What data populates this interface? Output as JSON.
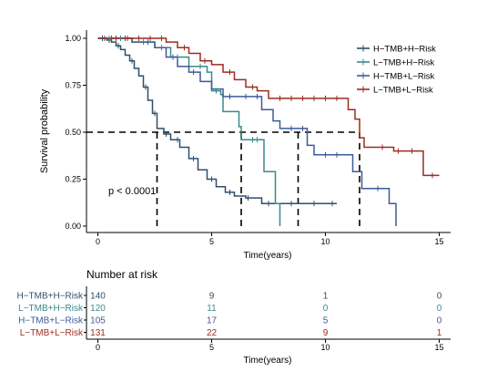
{
  "chart_data": {
    "type": "line",
    "ylabel": "Survival probability",
    "xlabel": "Time(years)",
    "xlim": [
      -0.5,
      15.5
    ],
    "ylim": [
      0,
      1
    ],
    "xticks": [
      0,
      5,
      10,
      15
    ],
    "yticks": [
      0.0,
      0.25,
      0.5,
      0.75,
      1.0
    ],
    "ytick_labels": [
      "0.00",
      "0.25",
      "0.50",
      "0.75",
      "1.00"
    ],
    "pvalue": "p < 0.0001",
    "legend_position": "top-right",
    "median_line_y": 0.5,
    "medians": [
      2.6,
      6.3,
      8.8,
      11.5
    ],
    "series": [
      {
        "name": "H−TMB+H−Risk",
        "color": "#2f4f6b",
        "steps": [
          [
            0,
            1
          ],
          [
            0.4,
            0.99
          ],
          [
            0.6,
            0.98
          ],
          [
            0.8,
            0.96
          ],
          [
            1.0,
            0.94
          ],
          [
            1.2,
            0.91
          ],
          [
            1.4,
            0.88
          ],
          [
            1.6,
            0.84
          ],
          [
            1.8,
            0.8
          ],
          [
            2.0,
            0.74
          ],
          [
            2.2,
            0.67
          ],
          [
            2.4,
            0.6
          ],
          [
            2.6,
            0.52
          ],
          [
            2.9,
            0.49
          ],
          [
            3.2,
            0.46
          ],
          [
            3.6,
            0.42
          ],
          [
            4.0,
            0.36
          ],
          [
            4.4,
            0.3
          ],
          [
            4.8,
            0.25
          ],
          [
            5.2,
            0.21
          ],
          [
            5.6,
            0.18
          ],
          [
            6.0,
            0.16
          ],
          [
            6.5,
            0.15
          ],
          [
            7.2,
            0.12
          ],
          [
            10.5,
            0.12
          ]
        ],
        "censor_x": [
          0.2,
          0.5,
          0.9,
          1.5,
          2.1,
          2.5,
          3.0,
          3.5,
          4.2,
          5.0,
          5.8,
          6.6,
          7.5,
          8.5,
          9.5,
          10.3
        ]
      },
      {
        "name": "L−TMB+H−Risk",
        "color": "#3a8a8a",
        "steps": [
          [
            0,
            1
          ],
          [
            1.5,
            0.98
          ],
          [
            2.5,
            0.95
          ],
          [
            3.2,
            0.9
          ],
          [
            4.0,
            0.85
          ],
          [
            4.8,
            0.82
          ],
          [
            5.0,
            0.72
          ],
          [
            5.4,
            0.7
          ],
          [
            5.5,
            0.61
          ],
          [
            6.2,
            0.53
          ],
          [
            6.3,
            0.46
          ],
          [
            7.3,
            0.29
          ],
          [
            7.8,
            0.12
          ],
          [
            8.0,
            0.0
          ]
        ],
        "censor_x": [
          0.5,
          1.0,
          2.0,
          2.8,
          3.5,
          4.5,
          5.2,
          6.8,
          7.0
        ]
      },
      {
        "name": "H−TMB+L−Risk",
        "color": "#3d5a99",
        "steps": [
          [
            0,
            1
          ],
          [
            1.5,
            0.98
          ],
          [
            2.5,
            0.95
          ],
          [
            3.0,
            0.9
          ],
          [
            3.5,
            0.85
          ],
          [
            4.0,
            0.82
          ],
          [
            4.5,
            0.77
          ],
          [
            5.0,
            0.73
          ],
          [
            5.5,
            0.69
          ],
          [
            7.2,
            0.62
          ],
          [
            7.7,
            0.56
          ],
          [
            8.0,
            0.52
          ],
          [
            9.2,
            0.43
          ],
          [
            9.5,
            0.38
          ],
          [
            11.2,
            0.29
          ],
          [
            11.6,
            0.2
          ],
          [
            12.8,
            0.12
          ],
          [
            13.1,
            0.0
          ]
        ],
        "censor_x": [
          0.6,
          1.2,
          2.2,
          3.3,
          4.2,
          5.8,
          6.5,
          7.0,
          8.5,
          9.0,
          10.0,
          10.5,
          12.3
        ]
      },
      {
        "name": "L−TMB+L−Risk",
        "color": "#9b2d20",
        "steps": [
          [
            0,
            1
          ],
          [
            3.0,
            0.98
          ],
          [
            3.5,
            0.95
          ],
          [
            4.0,
            0.92
          ],
          [
            4.5,
            0.88
          ],
          [
            5.0,
            0.86
          ],
          [
            5.5,
            0.82
          ],
          [
            6.0,
            0.78
          ],
          [
            6.5,
            0.74
          ],
          [
            7.0,
            0.72
          ],
          [
            7.5,
            0.68
          ],
          [
            11.0,
            0.62
          ],
          [
            11.3,
            0.57
          ],
          [
            11.5,
            0.47
          ],
          [
            11.7,
            0.42
          ],
          [
            13.0,
            0.4
          ],
          [
            14.3,
            0.27
          ],
          [
            15.0,
            0.27
          ]
        ],
        "censor_x": [
          0.3,
          0.8,
          1.3,
          1.8,
          2.3,
          2.8,
          3.8,
          4.7,
          5.8,
          6.8,
          8.0,
          8.5,
          9.0,
          9.5,
          10.0,
          10.5,
          12.5,
          13.2,
          13.8,
          14.7
        ]
      }
    ],
    "risk_table": {
      "title": "Number at risk",
      "xlabel": "Time(years)",
      "times": [
        0,
        5,
        10,
        15
      ],
      "rows": [
        {
          "name": "H−TMB+H−Risk",
          "color": "#2f4f6b",
          "values": [
            "140",
            "9",
            "1",
            "0"
          ]
        },
        {
          "name": "L−TMB+H−Risk",
          "color": "#3a8a8a",
          "values": [
            "120",
            "11",
            "0",
            "0"
          ]
        },
        {
          "name": "H−TMB+L−Risk",
          "color": "#3d5a99",
          "values": [
            "105",
            "17",
            "5",
            "0"
          ]
        },
        {
          "name": "L−TMB+L−Risk",
          "color": "#9b2d20",
          "values": [
            "131",
            "22",
            "9",
            "1"
          ]
        }
      ]
    }
  }
}
